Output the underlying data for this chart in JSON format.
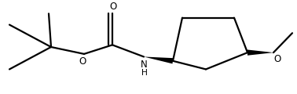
{
  "background": "#ffffff",
  "line_color": "#000000",
  "lw": 1.6,
  "fig_w": 3.78,
  "fig_h": 1.2,
  "dpi": 100,
  "fs": 8.5,
  "xlim": [
    0.2,
    8.0
  ],
  "ylim": [
    0.0,
    2.2
  ]
}
